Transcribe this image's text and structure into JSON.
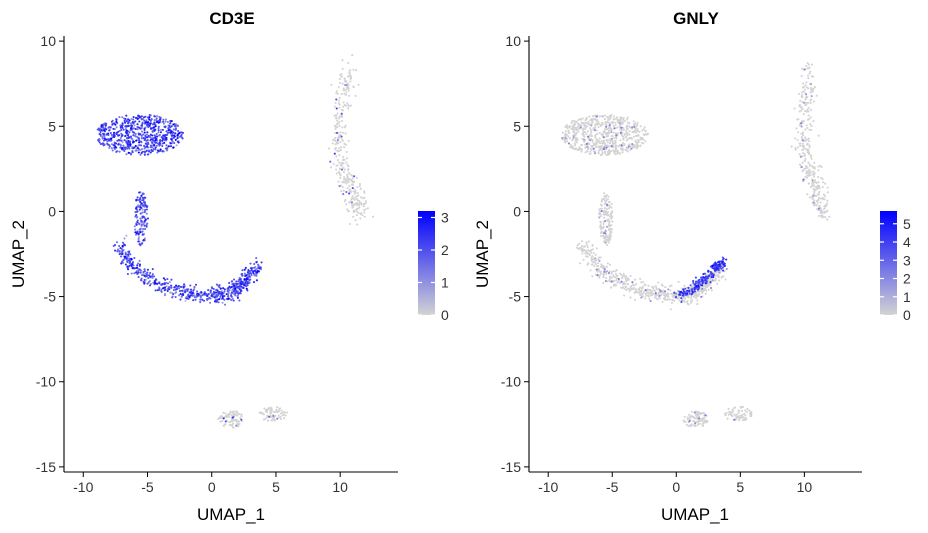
{
  "chart_data": [
    {
      "type": "scatter",
      "title": "CD3E",
      "xlabel": "UMAP_1",
      "ylabel": "UMAP_2",
      "xlim": [
        -11.5,
        14.5
      ],
      "ylim": [
        -15.3,
        10.3
      ],
      "xticks": [
        -10,
        -5,
        0,
        5,
        10
      ],
      "yticks": [
        -15,
        -10,
        -5,
        0,
        5,
        10
      ],
      "grid": false,
      "legend": {
        "position": "right",
        "min": 0,
        "max": 3.2,
        "ticks": [
          0,
          1,
          2,
          3
        ],
        "low_color": "#d3d3d3",
        "high_color": "#0000ff"
      },
      "clusters": [
        {
          "region": "upper-left",
          "center": [
            -5.6,
            4.5
          ],
          "radius": [
            3.4,
            1.2
          ],
          "points": 650,
          "expression": 2.0
        },
        {
          "region": "left-stem",
          "center": [
            -5.5,
            -0.4
          ],
          "radius": [
            0.55,
            1.6
          ],
          "points": 140,
          "expression": 1.8
        },
        {
          "region": "lower-arc",
          "path": [
            [
              -7.3,
              -2.0
            ],
            [
              -6.0,
              -3.4
            ],
            [
              -4.0,
              -4.3
            ],
            [
              -2.0,
              -4.8
            ],
            [
              0.0,
              -5.0
            ],
            [
              1.5,
              -4.8
            ],
            [
              2.6,
              -4.1
            ],
            [
              3.6,
              -3.2
            ]
          ],
          "spread": 0.55,
          "points": 620,
          "expression": 1.8
        },
        {
          "region": "upper-right",
          "path": [
            [
              10.6,
              8.5
            ],
            [
              10.2,
              6.5
            ],
            [
              9.8,
              4.5
            ],
            [
              10.0,
              3.0
            ],
            [
              10.6,
              1.8
            ],
            [
              11.2,
              0.8
            ],
            [
              11.6,
              -0.2
            ]
          ],
          "spread": 0.8,
          "points": 330,
          "expression": 0.1
        },
        {
          "region": "bottom",
          "center": [
            1.5,
            -12.2
          ],
          "radius": [
            1.0,
            0.5
          ],
          "points": 90,
          "expression": 0.3
        },
        {
          "region": "bottom-right",
          "center": [
            4.8,
            -11.9
          ],
          "radius": [
            1.1,
            0.45
          ],
          "points": 70,
          "expression": 0.1
        }
      ]
    },
    {
      "type": "scatter",
      "title": "GNLY",
      "xlabel": "UMAP_1",
      "ylabel": "UMAP_2",
      "xlim": [
        -11.5,
        14.5
      ],
      "ylim": [
        -15.3,
        10.3
      ],
      "xticks": [
        -10,
        -5,
        0,
        5,
        10
      ],
      "yticks": [
        -15,
        -10,
        -5,
        0,
        5,
        10
      ],
      "grid": false,
      "legend": {
        "position": "right",
        "min": 0,
        "max": 5.7,
        "ticks": [
          0,
          1,
          2,
          3,
          4,
          5
        ],
        "low_color": "#d3d3d3",
        "high_color": "#0000ff"
      },
      "clusters": [
        {
          "region": "upper-left",
          "center": [
            -5.6,
            4.5
          ],
          "radius": [
            3.4,
            1.2
          ],
          "points": 650,
          "expression": 0.1
        },
        {
          "region": "left-stem",
          "center": [
            -5.5,
            -0.4
          ],
          "radius": [
            0.55,
            1.6
          ],
          "points": 140,
          "expression": 0.1
        },
        {
          "region": "lower-arc",
          "path": [
            [
              -7.3,
              -2.0
            ],
            [
              -6.0,
              -3.4
            ],
            [
              -4.0,
              -4.3
            ],
            [
              -2.0,
              -4.8
            ],
            [
              0.0,
              -5.0
            ],
            [
              1.5,
              -4.8
            ],
            [
              2.6,
              -4.1
            ],
            [
              3.6,
              -3.2
            ]
          ],
          "spread": 0.55,
          "points": 620,
          "expression": 0.1
        },
        {
          "region": "upper-right",
          "path": [
            [
              10.6,
              8.5
            ],
            [
              10.2,
              6.5
            ],
            [
              9.8,
              4.5
            ],
            [
              10.0,
              3.0
            ],
            [
              10.6,
              1.8
            ],
            [
              11.2,
              0.8
            ],
            [
              11.6,
              -0.2
            ]
          ],
          "spread": 0.8,
          "points": 330,
          "expression": 0.2
        },
        {
          "region": "bottom",
          "center": [
            1.5,
            -12.2
          ],
          "radius": [
            1.0,
            0.5
          ],
          "points": 90,
          "expression": 0.1
        },
        {
          "region": "bottom-right",
          "center": [
            4.8,
            -11.9
          ],
          "radius": [
            1.1,
            0.45
          ],
          "points": 70,
          "expression": 0.1
        },
        {
          "region": "nk-arc",
          "path": [
            [
              0.0,
              -4.9
            ],
            [
              1.2,
              -4.6
            ],
            [
              2.2,
              -4.0
            ],
            [
              3.1,
              -3.3
            ],
            [
              3.6,
              -3.0
            ]
          ],
          "spread": 0.4,
          "points": 200,
          "expression": 4.0
        }
      ]
    }
  ]
}
